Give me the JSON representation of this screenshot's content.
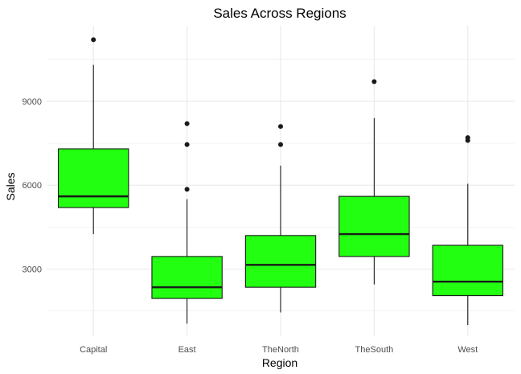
{
  "chart_data": {
    "type": "boxplot",
    "title": "Sales Across Regions",
    "xlabel": "Region",
    "ylabel": "Sales",
    "ylim": [
      600,
      11700
    ],
    "yticks": [
      3000,
      6000,
      9000
    ],
    "yticks_labels": [
      "3000",
      "6000",
      "9000"
    ],
    "grid": true,
    "legend": "none",
    "box_fill": "#22ff11",
    "box_stroke": "#1a1a1a",
    "point_color": "#1a1a1a",
    "gridline_color": "#ebebeb",
    "categories": [
      "Capital",
      "East",
      "TheNorth",
      "TheSouth",
      "West"
    ],
    "boxes": [
      {
        "category": "Capital",
        "whisker_low": 4250,
        "q1": 5200,
        "median": 5600,
        "q3": 7300,
        "whisker_high": 10300,
        "outliers": [
          11200
        ]
      },
      {
        "category": "East",
        "whisker_low": 1050,
        "q1": 1950,
        "median": 2350,
        "q3": 3450,
        "whisker_high": 5500,
        "outliers": [
          5850,
          7450,
          8200
        ]
      },
      {
        "category": "TheNorth",
        "whisker_low": 1450,
        "q1": 2350,
        "median": 3150,
        "q3": 4200,
        "whisker_high": 6700,
        "outliers": [
          7450,
          8100
        ]
      },
      {
        "category": "TheSouth",
        "whisker_low": 2450,
        "q1": 3450,
        "median": 4250,
        "q3": 5600,
        "whisker_high": 8400,
        "outliers": [
          9700
        ]
      },
      {
        "category": "West",
        "whisker_low": 1000,
        "q1": 2050,
        "median": 2550,
        "q3": 3850,
        "whisker_high": 6050,
        "outliers": [
          7600,
          7700
        ]
      }
    ]
  }
}
